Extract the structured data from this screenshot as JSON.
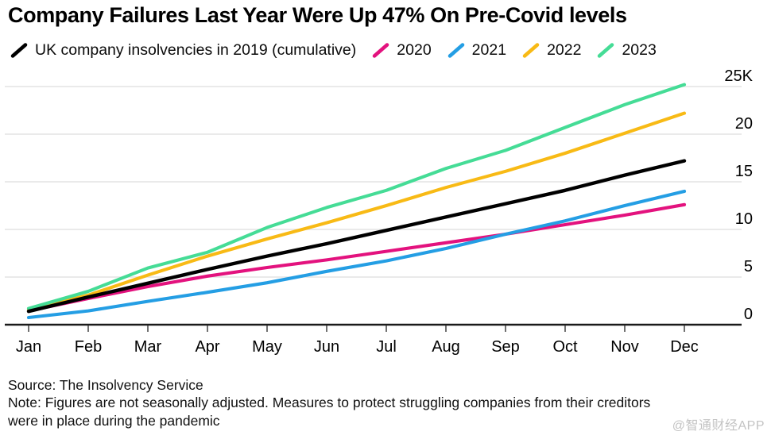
{
  "title": "Company Failures Last Year Were Up 47% On Pre-Covid levels",
  "legend": {
    "items": [
      {
        "label": "UK company insolvencies in 2019 (cumulative)",
        "color": "#000000"
      },
      {
        "label": "2020",
        "color": "#e3127e"
      },
      {
        "label": "2021",
        "color": "#249ee4"
      },
      {
        "label": "2022",
        "color": "#f8ba15"
      },
      {
        "label": "2023",
        "color": "#45dc96"
      }
    ]
  },
  "chart_data": {
    "type": "line",
    "title": "Company Failures Last Year Were Up 47% On Pre-Covid levels",
    "x": [
      "Jan",
      "Feb",
      "Mar",
      "Apr",
      "May",
      "Jun",
      "Jul",
      "Aug",
      "Sep",
      "Oct",
      "Nov",
      "Dec"
    ],
    "unit": "thousands of company insolvencies, cumulative",
    "ylim": [
      0,
      26
    ],
    "y_ticks": [
      0,
      5,
      10,
      15,
      20,
      25
    ],
    "y_tick_labels": [
      "0",
      "5",
      "10",
      "15",
      "20",
      "25K"
    ],
    "grid": "horizontal",
    "legend_position": "top",
    "series": [
      {
        "name": "UK company insolvencies in 2019 (cumulative)",
        "color": "#000000",
        "values": [
          1.4,
          2.9,
          4.35,
          5.8,
          7.2,
          8.5,
          9.9,
          11.3,
          12.7,
          14.1,
          15.7,
          17.2
        ]
      },
      {
        "name": "2020",
        "color": "#e3127e",
        "values": [
          1.45,
          2.75,
          4.0,
          5.1,
          6.0,
          6.8,
          7.7,
          8.6,
          9.5,
          10.5,
          11.5,
          12.6
        ]
      },
      {
        "name": "2021",
        "color": "#249ee4",
        "values": [
          0.75,
          1.45,
          2.45,
          3.4,
          4.4,
          5.6,
          6.7,
          8.0,
          9.5,
          10.9,
          12.5,
          14.0
        ]
      },
      {
        "name": "2022",
        "color": "#f8ba15",
        "values": [
          1.55,
          3.1,
          5.2,
          7.2,
          9.0,
          10.7,
          12.5,
          14.4,
          16.1,
          18.0,
          20.1,
          22.2
        ]
      },
      {
        "name": "2023",
        "color": "#45dc96",
        "values": [
          1.7,
          3.5,
          5.95,
          7.6,
          10.2,
          12.3,
          14.1,
          16.4,
          18.3,
          20.7,
          23.1,
          25.2
        ]
      }
    ]
  },
  "footer": {
    "source": "Source: The Insolvency Service",
    "note_lines": [
      "Note: Figures are not seasonally adjusted. Measures to protect struggling companies from their creditors",
      "were in place during the pandemic"
    ]
  },
  "watermark": "@智通财经APP"
}
